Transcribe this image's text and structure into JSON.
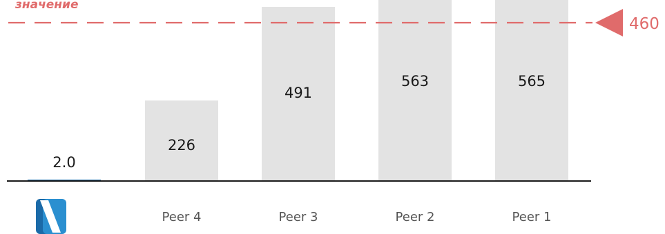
{
  "chart_data": {
    "type": "bar",
    "categories": [
      "",
      "Peer 4",
      "Peer 3",
      "Peer 2",
      "Peer 1"
    ],
    "values": [
      2.0,
      226,
      491,
      563,
      565
    ],
    "value_labels": [
      "2.0",
      "226",
      "491",
      "563",
      "565"
    ],
    "title": "",
    "xlabel": "",
    "ylabel": "",
    "ylim": [
      0,
      480
    ],
    "reference_line": {
      "value": 460,
      "label": "460",
      "caption": "значение",
      "color": "#e06b6b"
    },
    "bar_color": "#e3e3e3",
    "highlight_color": "#1a6aa8",
    "first_category_icon": "company-logo-icon"
  }
}
